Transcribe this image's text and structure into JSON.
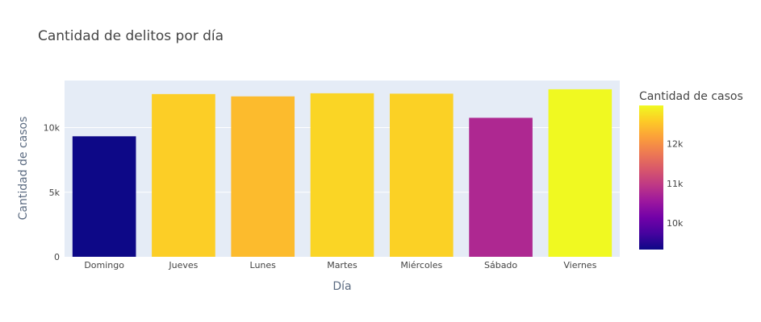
{
  "chart_data": {
    "type": "bar",
    "title": "Cantidad de delitos por día",
    "xlabel": "Día",
    "ylabel": "Cantidad de casos",
    "categories": [
      "Domingo",
      "Jueves",
      "Lunes",
      "Martes",
      "Miércoles",
      "Sábado",
      "Viernes"
    ],
    "values": [
      9330,
      12600,
      12420,
      12660,
      12630,
      10760,
      12970
    ],
    "ylim": [
      0,
      13650
    ],
    "yticks": [
      0,
      5000,
      10000
    ],
    "ytick_labels": [
      "0",
      "5k",
      "10k"
    ],
    "grid": true,
    "plot_bg": "#e5ecf6",
    "colorbar": {
      "title": "Cantidad de casos",
      "range": [
        9330,
        12970
      ],
      "ticks": [
        10000,
        11000,
        12000
      ],
      "tick_labels": [
        "10k",
        "11k",
        "12k"
      ],
      "colorscale": [
        "#0d0887",
        "#46039f",
        "#7201a8",
        "#9c179e",
        "#bd3786",
        "#d8576b",
        "#ed7953",
        "#fb9f3a",
        "#fdca26",
        "#f0f921"
      ]
    }
  }
}
